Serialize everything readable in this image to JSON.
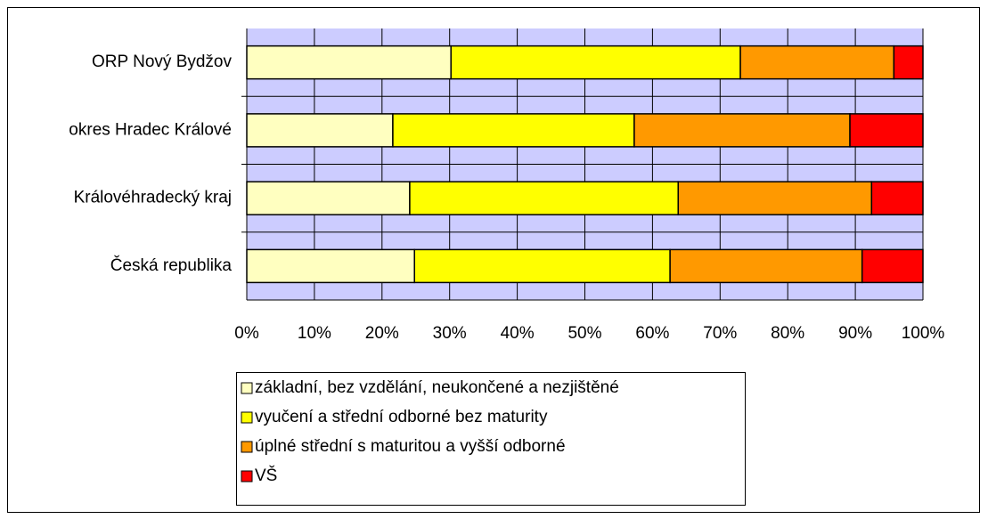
{
  "chart_data": {
    "type": "stacked-bar-horizontal-100",
    "categories": [
      "ORP Nový Bydžov",
      "okres Hradec Králové",
      "Královéhradecký kraj",
      "Česká republika"
    ],
    "series": [
      {
        "name": "základní, bez vzdělání, neukončené a nezjištěné",
        "color": "#ffffc0",
        "values": [
          30.2,
          21.6,
          24.1,
          24.8
        ]
      },
      {
        "name": "vyučení a střední odborné bez maturity",
        "color": "#ffff00",
        "values": [
          42.8,
          35.7,
          39.7,
          37.8
        ]
      },
      {
        "name": "úplné střední s maturitou a vyšší odborné",
        "color": "#ff9900",
        "values": [
          22.7,
          31.9,
          28.6,
          28.4
        ]
      },
      {
        "name": "VŠ",
        "color": "#ff0000",
        "values": [
          4.3,
          10.8,
          7.6,
          9.0
        ]
      }
    ],
    "xlim": [
      0,
      100
    ],
    "xticks": [
      {
        "value": 0,
        "label": "0%"
      },
      {
        "value": 10,
        "label": "10%"
      },
      {
        "value": 20,
        "label": "20%"
      },
      {
        "value": 30,
        "label": "30%"
      },
      {
        "value": 40,
        "label": "40%"
      },
      {
        "value": 50,
        "label": "50%"
      },
      {
        "value": 60,
        "label": "60%"
      },
      {
        "value": 70,
        "label": "70%"
      },
      {
        "value": 80,
        "label": "80%"
      },
      {
        "value": 90,
        "label": "90%"
      },
      {
        "value": 100,
        "label": "100%"
      }
    ],
    "grid": true,
    "plot_background": "#ccccff",
    "legend": "bottom"
  }
}
